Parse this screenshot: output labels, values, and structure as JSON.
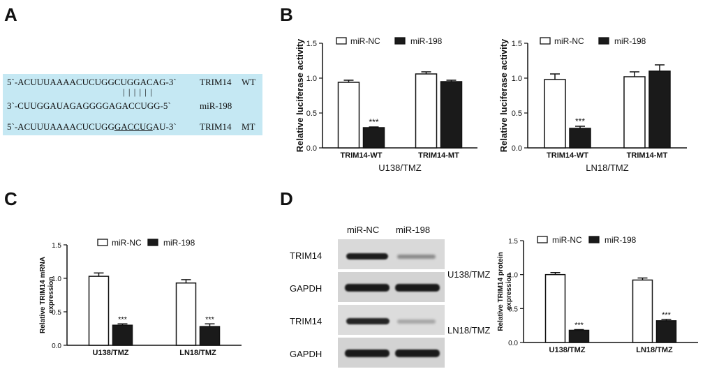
{
  "panels": {
    "A": "A",
    "B": "B",
    "C": "C",
    "D": "D"
  },
  "panelA": {
    "lines": [
      {
        "seq_pre": "5`-ACUUUAAAACUCUGGCUGGACAG-3`",
        "seq_ul": "",
        "seq_post": "",
        "label1": "TRIM14",
        "label2": "WT"
      },
      {
        "seq_pre": "3`-CUUGGAUAGAGGGGAGACCUGG-5`",
        "seq_ul": "",
        "seq_post": "",
        "label1": "miR-198",
        "label2": ""
      },
      {
        "seq_pre": "5`-ACUUUAAAACUCUGG",
        "seq_ul": "GACCUG",
        "seq_post": "AU-3`",
        "label1": "TRIM14",
        "label2": "MT"
      }
    ],
    "pairing_bars": "| | | | | |"
  },
  "panelD_blot": {
    "lane_labels": [
      "miR-NC",
      "miR-198"
    ],
    "row_labels": [
      "TRIM14",
      "GAPDH",
      "TRIM14",
      "GAPDH"
    ],
    "group_labels": [
      "U138/TMZ",
      "LN18/TMZ"
    ]
  },
  "chart_data": [
    {
      "id": "B-left",
      "type": "bar",
      "ylabel": "Relative luciferase activity",
      "xlabel": "U138/TMZ",
      "categories": [
        "TRIM14-WT",
        "TRIM14-MT"
      ],
      "ylim": [
        0,
        1.5
      ],
      "yticks": [
        "0.0",
        "0.5",
        "1.0",
        "1.5"
      ],
      "series": [
        {
          "name": "miR-NC",
          "values": [
            0.94,
            1.06
          ],
          "errors": [
            0.03,
            0.03
          ],
          "color": "#ffffff"
        },
        {
          "name": "miR-198",
          "values": [
            0.29,
            0.95
          ],
          "errors": [
            0.01,
            0.02
          ],
          "color": "#1a1a1a"
        }
      ],
      "annotations": [
        "***",
        ""
      ],
      "legend": "top"
    },
    {
      "id": "B-right",
      "type": "bar",
      "ylabel": "Relative luciferase activity",
      "xlabel": "LN18/TMZ",
      "categories": [
        "TRIM14-WT",
        "TRIM14-MT"
      ],
      "ylim": [
        0,
        1.5
      ],
      "yticks": [
        "0.0",
        "0.5",
        "1.0",
        "1.5"
      ],
      "series": [
        {
          "name": "miR-NC",
          "values": [
            0.98,
            1.02
          ],
          "errors": [
            0.08,
            0.07
          ],
          "color": "#ffffff"
        },
        {
          "name": "miR-198",
          "values": [
            0.28,
            1.1
          ],
          "errors": [
            0.03,
            0.09
          ],
          "color": "#1a1a1a"
        }
      ],
      "annotations": [
        "***",
        ""
      ],
      "legend": "top"
    },
    {
      "id": "C",
      "type": "bar",
      "ylabel": "Relative TRIM14 mRNA expression",
      "xlabel": "",
      "categories": [
        "U138/TMZ",
        "LN18/TMZ"
      ],
      "ylim": [
        0,
        1.5
      ],
      "yticks": [
        "0.0",
        "0.5",
        "1.0",
        "1.5"
      ],
      "series": [
        {
          "name": "miR-NC",
          "values": [
            1.03,
            0.93
          ],
          "errors": [
            0.05,
            0.05
          ],
          "color": "#ffffff"
        },
        {
          "name": "miR-198",
          "values": [
            0.3,
            0.28
          ],
          "errors": [
            0.02,
            0.04
          ],
          "color": "#1a1a1a"
        }
      ],
      "annotations": [
        "***",
        "***"
      ],
      "legend": "top"
    },
    {
      "id": "D-chart",
      "type": "bar",
      "ylabel": "Relative TRIM14 protein expression",
      "xlabel": "",
      "categories": [
        "U138/TMZ",
        "LN18/TMZ"
      ],
      "ylim": [
        0,
        1.5
      ],
      "yticks": [
        "0.0",
        "0.5",
        "1.0",
        "1.5"
      ],
      "series": [
        {
          "name": "miR-NC",
          "values": [
            1.0,
            0.92
          ],
          "errors": [
            0.03,
            0.03
          ],
          "color": "#ffffff"
        },
        {
          "name": "miR-198",
          "values": [
            0.18,
            0.32
          ],
          "errors": [
            0.01,
            0.02
          ],
          "color": "#1a1a1a"
        }
      ],
      "annotations": [
        "***",
        "***"
      ],
      "legend": "top"
    }
  ]
}
